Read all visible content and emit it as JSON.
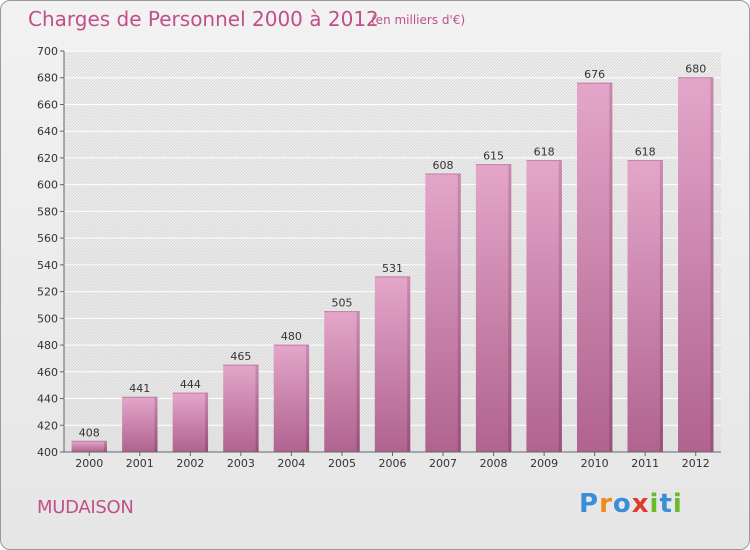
{
  "header": {
    "title": "Charges de Personnel 2000 à 2012",
    "subtitle": "(en milliers d'€)"
  },
  "footer": {
    "place": "MUDAISON",
    "logo": [
      "P",
      "r",
      "o",
      "x",
      "i",
      "t",
      "i"
    ],
    "logo_colors": [
      "#3a8fd8",
      "#f08a1a",
      "#3a8fd8",
      "#e23a2a",
      "#6aba2a",
      "#3a8fd8",
      "#6aba2a"
    ]
  },
  "colors": {
    "bar": "#d77fb0",
    "bar_light": "#e3a6c9",
    "bar_dark": "#a85c86",
    "text_accent": "#c0508a"
  },
  "chart_data": {
    "type": "bar",
    "title": "Charges de Personnel 2000 à 2012",
    "subtitle": "(en milliers d'€)",
    "categories": [
      "2000",
      "2001",
      "2002",
      "2003",
      "2004",
      "2005",
      "2006",
      "2007",
      "2008",
      "2009",
      "2010",
      "2011",
      "2012"
    ],
    "values": [
      408,
      441,
      444,
      465,
      480,
      505,
      531,
      608,
      615,
      618,
      676,
      618,
      680
    ],
    "ylim": [
      400,
      700
    ],
    "yticks": [
      400,
      420,
      440,
      460,
      480,
      500,
      520,
      540,
      560,
      580,
      600,
      620,
      640,
      660,
      680,
      700
    ],
    "grid": true
  }
}
